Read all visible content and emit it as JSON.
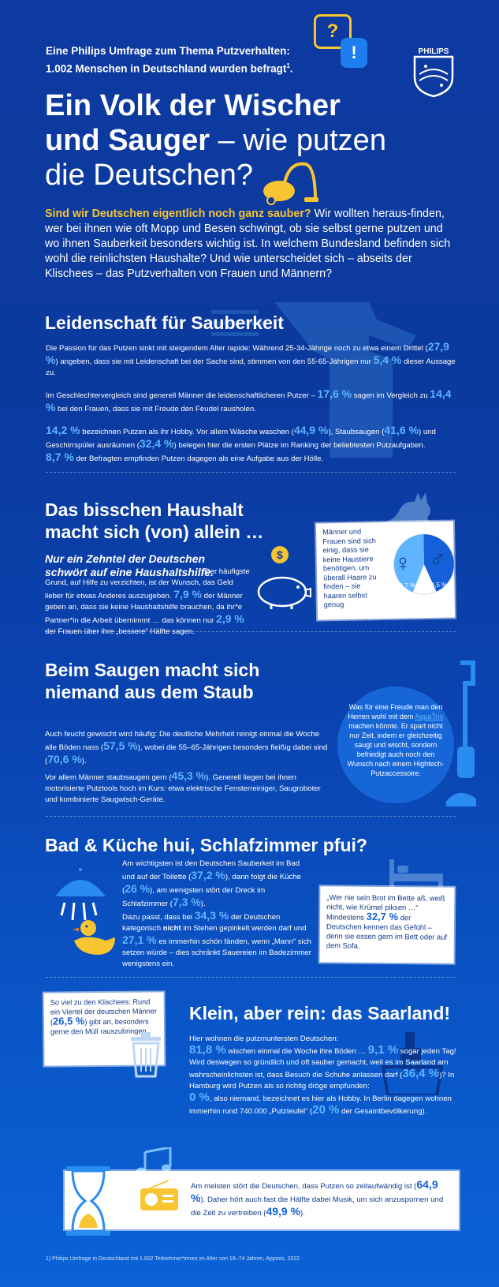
{
  "header": {
    "survey_line1": "Eine Philips Umfrage zum Thema Putzverhalten:",
    "survey_line2": "1.002 Menschen in Deutschland wurden befragt",
    "survey_sup": "1",
    "survey_end": ".",
    "brand": "PHILIPS",
    "title_line1": "Ein Volk der Wischer",
    "title_line2_bold": "und Sauger",
    "title_line2_rest": " – wie putzen",
    "title_line3": "die Deutschen?",
    "question_mark": "?",
    "excl_mark": "!"
  },
  "intro": {
    "lead": "Sind wir Deutschen eigentlich noch ganz sauber?",
    "text": " Wir wollten heraus-finden, wer bei ihnen wie oft Mopp und Besen schwingt, ob sie selbst gerne putzen und wo ihnen Sauberkeit besonders wichtig ist. In welchem Bundesland befinden sich wohl die reinlichsten Haushalte? Und wie unterscheidet sich – abseits der Klischees – das Putzverhalten von Frauen und Männern?"
  },
  "s1": {
    "title": "Leidenschaft für Sauberkeit",
    "p1a": "Die Passion für das Putzen sinkt mit steigendem Alter rapide: Während 25-34-Jährige noch zu etwa einem Drittel (",
    "v1": "27,9 %",
    "p1b": ") angeben, dass sie mit Leidenschaft bei der Sache sind, stimmen von den 55-65-Jährigen nur ",
    "v2": "5,4 %",
    "p1c": " dieser Aussage zu.",
    "p2a": "Im Geschlechtervergleich sind generell Männer die leidenschaftlicheren Putzer – ",
    "v3": "17,6 %",
    "p2b": " sagen im Vergleich zu ",
    "v4": "14,4 %",
    "p2c": " bei den Frauen, dass sie mit Freude den Feudel rausholen.",
    "v5": "14,2 %",
    "p3a": " bezeichnen Putzen als ihr Hobby. Vor allem Wäsche waschen (",
    "v6": "44,9 %",
    "p3b": "), Staubsaugen (",
    "v7": "41,6 %",
    "p3c": ") und Geschirrspüler ausräumen (",
    "v8": "32,4 %",
    "p3d": ") belegen hier die ersten Plätze im Ranking der beliebtesten Putzaufgaben.",
    "v9": "8,7 %",
    "p4": " der Befragten empfinden Putzen dagegen als eine Aufgabe aus der Hölle."
  },
  "s2": {
    "title_line1": "Das bisschen Haushalt",
    "title_line2": "macht sich (von) allein …",
    "sub_line1": "Nur ein Zehntel der Deutschen",
    "sub_line2": "schwört auf eine Haushaltshilfe.",
    "p1": " Der häufigste Grund, auf Hilfe zu verzichten, ist der Wunsch, das Geld lieber für etwas Anderes auszugeben. ",
    "v1": "7,9 %",
    "p2": " der Männer geben an, dass sie keine Haushaltshilfe brauchen, da ihr*e Partner*in die Arbeit übernimmt … das können nur ",
    "v2": "2,9 %",
    "p3": " der Frauen über ihre „bessere“ Hälfte sagen.",
    "note": "Männer und Frauen sind sich einig, dass sie keine Haustiere benötigen, um überall Haare zu finden – sie haaren selbst genug",
    "pie_female": "43,7 %",
    "pie_male": "43,5 %",
    "coin_symbol": "$",
    "female_symbol": "♀",
    "male_symbol": "♂"
  },
  "s3": {
    "title_line1": "Beim Saugen macht sich",
    "title_line2": "niemand aus dem Staub",
    "p1a": "Auch feucht gewischt wird häufig: Die deutliche Mehrheit reinigt einmal die Woche alle Böden nass (",
    "v1": "57,5 %",
    "p1b": "), wobei die 55–65-Jährigen besonders fleißig dabei sind (",
    "v2": "70,6 %",
    "p1c": ").",
    "p2a": "Vor allem Männer staubsaugen gern (",
    "v3": "45,3 %",
    "p2b": "). Generell liegen bei ihnen motorisierte Putztools hoch im Kurs: etwa elektrische Fensterreiniger, Saugroboter und kombinierte Saugwisch-Geräte.",
    "bubble_a": "Was für eine Freude man den Herren wohl mit dem ",
    "bubble_link": "AquaTrio",
    "bubble_b": " machen könnte. Er spart nicht nur Zeit, indem er gleichzeitig saugt und wischt, sondern befriedigt auch noch den Wunsch nach einem Hightech-Putzaccessoire."
  },
  "s4": {
    "title": "Bad & Küche hui, Schlafzimmer pfui?",
    "p1a": "Am wichtigsten ist den Deutschen Sauberkeit im Bad und auf der Toilette (",
    "v1": "37,2 %",
    "p1b": "), dann folgt die Küche (",
    "v2": "26 %",
    "p1c": "), am wenigsten stört der Dreck im Schlafzimmer (",
    "v3": "7,3 %",
    "p1d": ").",
    "p2a": "Dazu passt, dass bei ",
    "v4": "34,3 %",
    "p2b": " der Deutschen kategorisch ",
    "nicht": "nicht",
    "p2c": " im Stehen gepinkelt werden darf und ",
    "v5": "27,1 %",
    "p2d": " es immerhin schön fänden, wenn „Mann“ sich setzen würde – dies schränkt Sauereien im Badezimmer wenigstens ein.",
    "note_quote": "„Wer nie sein Brot im Bette aß, weiß nicht, wie Krümel piksen …“",
    "note_a": "Mindestens ",
    "note_v": "32,7 %",
    "note_b": " der Deutschen kennen das Gefühl – denn sie essen gern im Bett oder auf dem Sofa."
  },
  "s5": {
    "note_a": "So viel zu den Klischees: Rund ein Viertel der deutschen Männer (",
    "note_v": "26,5 %",
    "note_b": ") gibt an, besonders gerne den Müll rauszubringen.",
    "title": "Klein, aber rein: das Saarland!",
    "p1": "Hier wohnen die putzmuntersten Deutschen:",
    "v1": "81,8 %",
    "p2": " wischen einmal die Woche ihre Böden … ",
    "v2": "9,1 %",
    "p3": " sogar jeden Tag! Wird deswegen so gründlich und oft sauber gemacht, weil es im Saarland am wahrscheinlichsten ist, dass Besuch die Schuhe anlassen darf (",
    "v3": "36,4 %",
    "p4": ")? In Hamburg wird Putzen als so richtig dröge empfunden:",
    "v4": "0 %",
    "p5": ", also niemand, bezeichnet es hier als Hobby. In Berlin dagegen wohnen immerhin rund 740.000 „Putzteufel“ (",
    "v5": "20 %",
    "p6": " der Gesamtbevölkerung)."
  },
  "s6": {
    "p1": "Am meisten stört die Deutschen, dass Putzen so zeitaufwändig ist (",
    "v1": "64,9 %",
    "p2": "). Daher hört auch fast die Hälfte dabei Musik, um sich anzuspornen und die Zeit zu vertreiben (",
    "v2": "49,9 %",
    "p3": ")."
  },
  "footnote": "1) Philips Umfrage in Deutschland mit 1.002 Teilnehmer*innen im Alter von 18–74 Jahren, Appinio, 2022",
  "pie_chart": {
    "female_share": 43.7,
    "male_share": 43.5
  },
  "colors": {
    "accent": "#5fb4ff",
    "yellow": "#f7c532",
    "bg": "#0d3aa0",
    "highlight_blue": "#1460d8"
  },
  "icons": [
    "question-bubble-icon",
    "exclamation-bubble-icon",
    "philips-shield-logo",
    "vacuum-cleaner-icon",
    "spray-bottle-icon",
    "cat-icon",
    "piggy-bank-icon",
    "coin-icon",
    "female-symbol-icon",
    "male-symbol-icon",
    "stick-vacuum-icon",
    "bed-icon",
    "shower-icon",
    "rubber-duck-icon",
    "trash-can-icon",
    "bucket-icon",
    "music-note-icon",
    "hourglass-icon",
    "radio-icon"
  ]
}
